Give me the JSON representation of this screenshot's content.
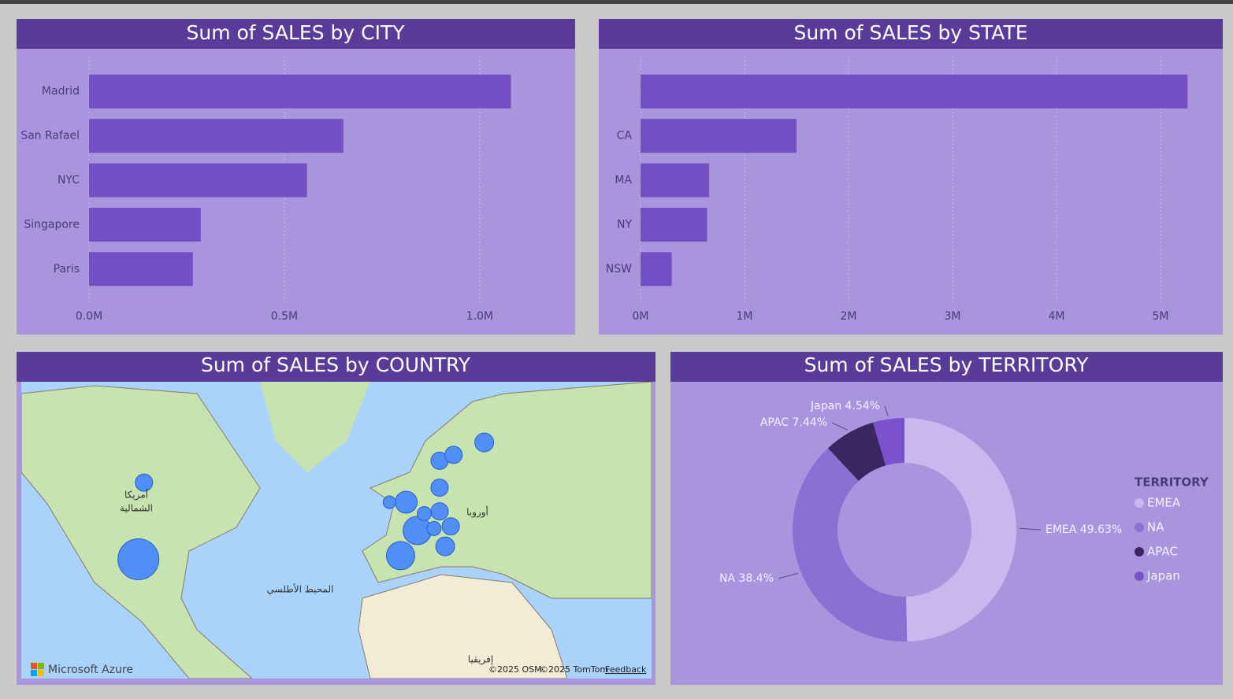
{
  "chart_data": [
    {
      "type": "hbar",
      "title": "Sum of SALES by CITY",
      "categories": [
        "Madrid",
        "San Rafael",
        "NYC",
        "Singapore",
        "Paris"
      ],
      "values": [
        1080000,
        651000,
        558000,
        286000,
        266000
      ],
      "color": "#7450c4",
      "xlim": [
        0,
        1200000
      ],
      "xticks": [
        {
          "value": 0,
          "label": "0.0M"
        },
        {
          "value": 500000,
          "label": "0.5M"
        },
        {
          "value": 1000000,
          "label": "1.0M"
        }
      ],
      "grid": true
    },
    {
      "type": "hbar",
      "title": "Sum of SALES by STATE",
      "categories": [
        null,
        "CA",
        "MA",
        "NY",
        "NSW"
      ],
      "values": [
        5260000,
        1500000,
        660000,
        640000,
        300000
      ],
      "color": "#7450c4",
      "xlim": [
        0,
        5500000
      ],
      "xticks": [
        {
          "value": 0,
          "label": "0M"
        },
        {
          "value": 1000000,
          "label": "1M"
        },
        {
          "value": 2000000,
          "label": "2M"
        },
        {
          "value": 3000000,
          "label": "3M"
        },
        {
          "value": 4000000,
          "label": "4M"
        },
        {
          "value": 5000000,
          "label": "5M"
        }
      ],
      "grid": true
    },
    {
      "type": "map",
      "title": "Sum of SALES by COUNTRY",
      "x": [
        -98,
        -96,
        -4,
        2,
        -2,
        -8,
        10,
        15,
        26,
        10,
        10,
        4.5,
        8,
        14,
        12
      ],
      "y": [
        39,
        57,
        40,
        46.5,
        53,
        53,
        61,
        62,
        64,
        56,
        51,
        50.5,
        47,
        47.5,
        42.5
      ],
      "sizes": [
        3630000,
        650000,
        1740000,
        1740000,
        1050000,
        340000,
        650000,
        650000,
        770000,
        650000,
        650000,
        430000,
        430000,
        650000,
        770000
      ],
      "xlim": [
        -140,
        86
      ],
      "ylim": [
        0,
        72
      ],
      "color": "#4f8ff7",
      "annotations": [
        "أمريكا",
        "الشمالية",
        "المحيط الأطلسي",
        "أوروبا",
        "إفريقيا"
      ],
      "attribution": [
        "Microsoft Azure",
        "©2025 OSM",
        "©2025 TomTom",
        "Feedback"
      ]
    },
    {
      "type": "donut",
      "title": "Sum of SALES by TERRITORY",
      "categories": [
        "EMEA",
        "NA",
        "APAC",
        "Japan"
      ],
      "values": [
        49.63,
        38.4,
        7.44,
        4.54
      ],
      "value_labels": [
        "EMEA 49.63%",
        "NA 38.4%",
        "APAC 7.44%",
        "Japan 4.54%"
      ],
      "colors": [
        "#c8b8ee",
        "#8b6fd3",
        "#3a2660",
        "#7a52cc"
      ],
      "legend_title": "TERRITORY",
      "legend": "right"
    }
  ]
}
